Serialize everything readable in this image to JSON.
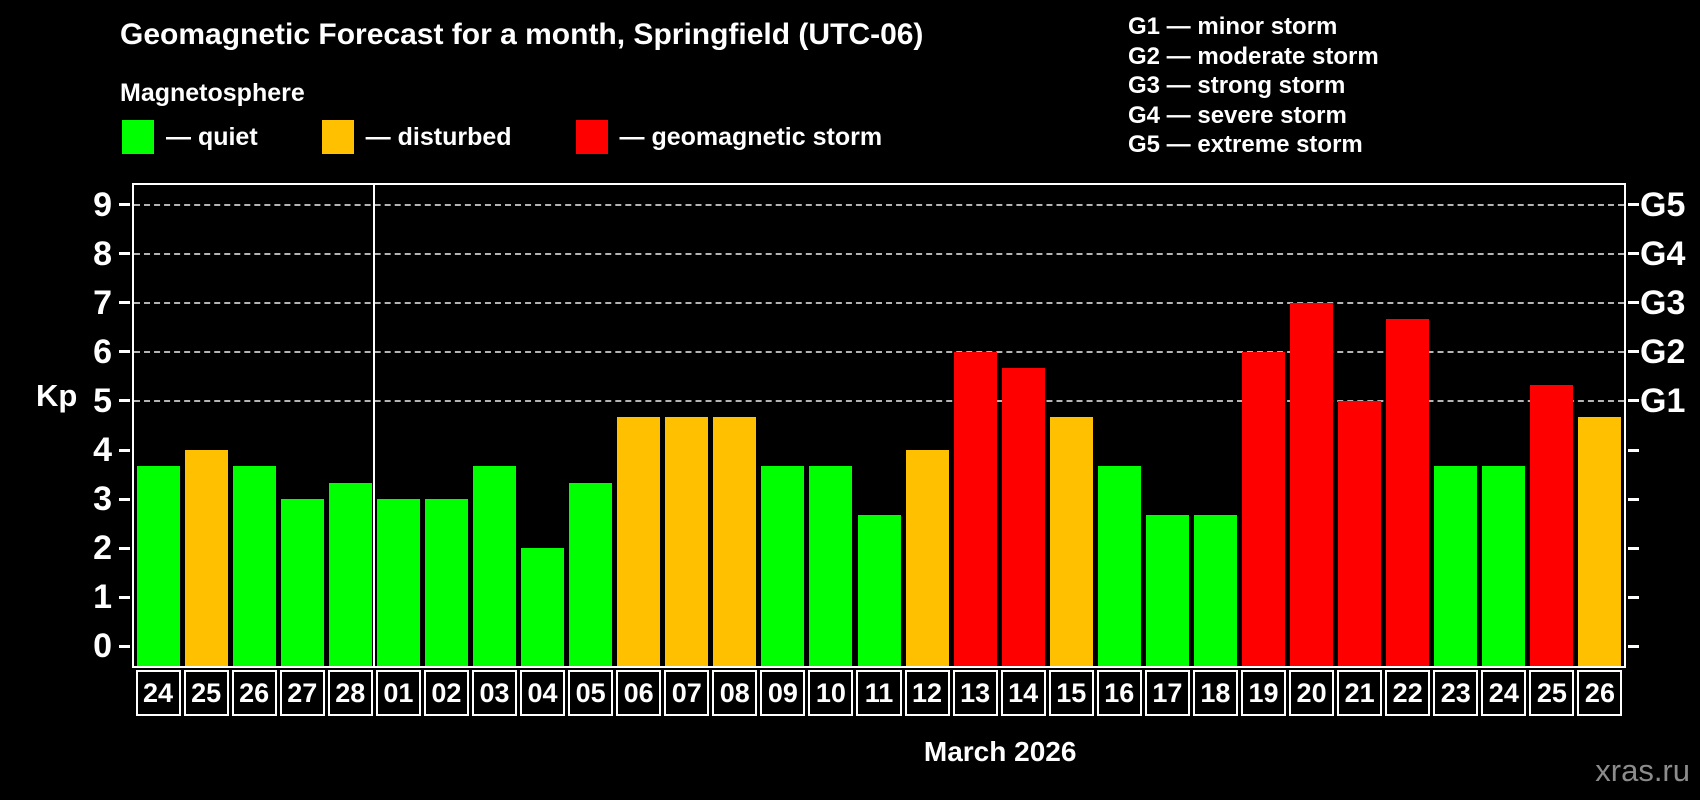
{
  "header": {
    "title": "Geomagnetic Forecast for a month, Springfield (UTC-06)",
    "subtitle": "Magnetosphere"
  },
  "legend": {
    "items": [
      {
        "label": "— quiet",
        "status": "quiet"
      },
      {
        "label": "— disturbed",
        "status": "disturbed"
      },
      {
        "label": "— geomagnetic storm",
        "status": "storm"
      }
    ]
  },
  "g_scale_legend": [
    "G1 — minor storm",
    "G2 — moderate storm",
    "G3 — strong storm",
    "G4 — severe storm",
    "G5 — extreme storm"
  ],
  "colors": {
    "quiet": "#00ff00",
    "disturbed": "#ffc000",
    "storm": "#ff0000",
    "axis": "#ffffff",
    "gridline": "#b4b4b4",
    "watermark": "#8c8c8c"
  },
  "watermark": "xras.ru",
  "chart_data": {
    "type": "bar",
    "title": "Geomagnetic Forecast for a month, Springfield (UTC-06)",
    "ylabel": "Kp",
    "xlabel": "March 2026",
    "ylim": [
      0,
      9
    ],
    "yticks": [
      0,
      1,
      2,
      3,
      4,
      5,
      6,
      7,
      8,
      9
    ],
    "gridlines_at": [
      5,
      6,
      7,
      8,
      9
    ],
    "right_axis_labels": [
      {
        "label": "G1",
        "kp": 5
      },
      {
        "label": "G2",
        "kp": 6
      },
      {
        "label": "G3",
        "kp": 7
      },
      {
        "label": "G4",
        "kp": 8
      },
      {
        "label": "G5",
        "kp": 9
      }
    ],
    "legend_position": "top-left",
    "grid": "dashed horizontal at Kp 5-9 only",
    "month_divider_after_index": 4,
    "bars": [
      {
        "day": "24",
        "kp": 3.67,
        "status": "quiet"
      },
      {
        "day": "25",
        "kp": 4.0,
        "status": "disturbed"
      },
      {
        "day": "26",
        "kp": 3.67,
        "status": "quiet"
      },
      {
        "day": "27",
        "kp": 3.0,
        "status": "quiet"
      },
      {
        "day": "28",
        "kp": 3.33,
        "status": "quiet"
      },
      {
        "day": "01",
        "kp": 3.0,
        "status": "quiet"
      },
      {
        "day": "02",
        "kp": 3.0,
        "status": "quiet"
      },
      {
        "day": "03",
        "kp": 3.67,
        "status": "quiet"
      },
      {
        "day": "04",
        "kp": 2.0,
        "status": "quiet"
      },
      {
        "day": "05",
        "kp": 3.33,
        "status": "quiet"
      },
      {
        "day": "06",
        "kp": 4.67,
        "status": "disturbed"
      },
      {
        "day": "07",
        "kp": 4.67,
        "status": "disturbed"
      },
      {
        "day": "08",
        "kp": 4.67,
        "status": "disturbed"
      },
      {
        "day": "09",
        "kp": 3.67,
        "status": "quiet"
      },
      {
        "day": "10",
        "kp": 3.67,
        "status": "quiet"
      },
      {
        "day": "11",
        "kp": 2.67,
        "status": "quiet"
      },
      {
        "day": "12",
        "kp": 4.0,
        "status": "disturbed"
      },
      {
        "day": "13",
        "kp": 6.0,
        "status": "storm"
      },
      {
        "day": "14",
        "kp": 5.67,
        "status": "storm"
      },
      {
        "day": "15",
        "kp": 4.67,
        "status": "disturbed"
      },
      {
        "day": "16",
        "kp": 3.67,
        "status": "quiet"
      },
      {
        "day": "17",
        "kp": 2.67,
        "status": "quiet"
      },
      {
        "day": "18",
        "kp": 2.67,
        "status": "quiet"
      },
      {
        "day": "19",
        "kp": 6.0,
        "status": "storm"
      },
      {
        "day": "20",
        "kp": 7.0,
        "status": "storm"
      },
      {
        "day": "21",
        "kp": 5.0,
        "status": "storm"
      },
      {
        "day": "22",
        "kp": 6.67,
        "status": "storm"
      },
      {
        "day": "23",
        "kp": 3.67,
        "status": "quiet"
      },
      {
        "day": "24",
        "kp": 3.67,
        "status": "quiet"
      },
      {
        "day": "25",
        "kp": 5.33,
        "status": "storm"
      },
      {
        "day": "26",
        "kp": 4.67,
        "status": "disturbed"
      }
    ]
  }
}
